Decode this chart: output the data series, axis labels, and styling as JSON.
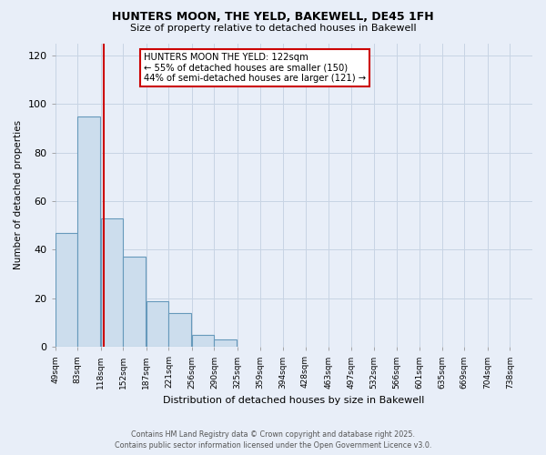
{
  "title1": "HUNTERS MOON, THE YELD, BAKEWELL, DE45 1FH",
  "title2": "Size of property relative to detached houses in Bakewell",
  "xlabel": "Distribution of detached houses by size in Bakewell",
  "ylabel": "Number of detached properties",
  "bin_labels": [
    "49sqm",
    "83sqm",
    "118sqm",
    "152sqm",
    "187sqm",
    "221sqm",
    "256sqm",
    "290sqm",
    "325sqm",
    "359sqm",
    "394sqm",
    "428sqm",
    "463sqm",
    "497sqm",
    "532sqm",
    "566sqm",
    "601sqm",
    "635sqm",
    "669sqm",
    "704sqm",
    "738sqm"
  ],
  "bin_edges": [
    49,
    83,
    118,
    152,
    187,
    221,
    256,
    290,
    325,
    359,
    394,
    428,
    463,
    497,
    532,
    566,
    601,
    635,
    669,
    704,
    738
  ],
  "bin_width": 34,
  "counts": [
    47,
    95,
    53,
    37,
    19,
    14,
    5,
    3,
    0,
    0,
    0,
    0,
    0,
    0,
    0,
    0,
    0,
    0,
    0,
    0
  ],
  "bar_color": "#ccdded",
  "bar_edge_color": "#6699bb",
  "property_size": 122,
  "vline_color": "#cc0000",
  "annotation_title": "HUNTERS MOON THE YELD: 122sqm",
  "annotation_line1": "← 55% of detached houses are smaller (150)",
  "annotation_line2": "44% of semi-detached houses are larger (121) →",
  "annotation_box_color": "#ffffff",
  "annotation_box_edge": "#cc0000",
  "ylim": [
    0,
    125
  ],
  "yticks": [
    0,
    20,
    40,
    60,
    80,
    100,
    120
  ],
  "xlim_min": 49,
  "xlim_max": 772,
  "grid_color": "#c8d4e4",
  "bg_color": "#e8eef8",
  "footer1": "Contains HM Land Registry data © Crown copyright and database right 2025.",
  "footer2": "Contains public sector information licensed under the Open Government Licence v3.0."
}
